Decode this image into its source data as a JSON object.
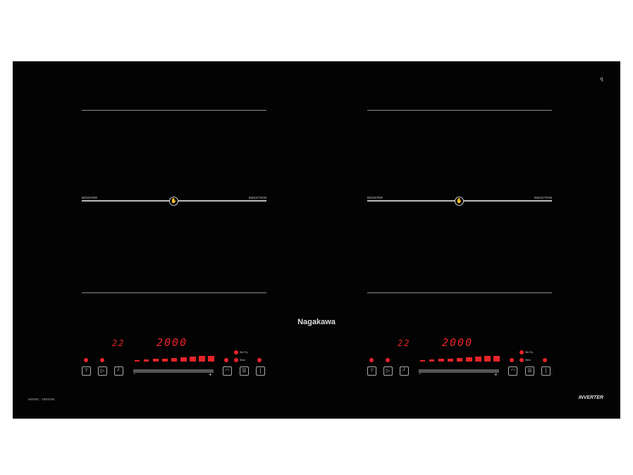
{
  "brand": "Nagakawa",
  "model": "MODEL : NDI9194",
  "inverter": "INVERTER",
  "corner_icon": "ꟼ",
  "colors": {
    "glass": "#030303",
    "led": "#e8242a",
    "lines": "#bbbbbb"
  },
  "zones": [
    {
      "left_label": "BOOSTER",
      "right_label": "INDUCTION",
      "bridge_icon": "hand-icon"
    },
    {
      "left_label": "BOOSTER",
      "right_label": "INDUCTION",
      "bridge_icon": "hand-icon"
    }
  ],
  "controls": [
    {
      "timer_display": "22",
      "power_display": "2000",
      "stir_fry": "Stir Fry",
      "stew": "Stew",
      "power_level_bars": 9,
      "minus": "−",
      "plus": "+"
    },
    {
      "timer_display": "22",
      "power_display": "2000",
      "stir_fry": "Stir Fry",
      "stew": "Stew",
      "power_level_bars": 9,
      "minus": "−",
      "plus": "+"
    }
  ]
}
